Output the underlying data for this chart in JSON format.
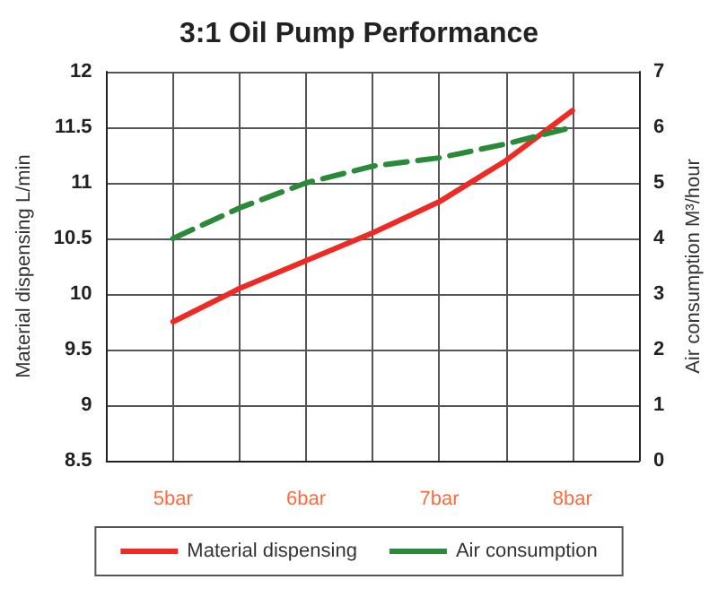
{
  "chart_data": {
    "type": "line",
    "title": "3:1 Oil Pump Performance",
    "ylabel": "Material dispensing L/min",
    "y2label": "Air consumption M³/hour",
    "x": [
      5,
      5.5,
      6,
      6.5,
      7,
      7.5,
      8
    ],
    "xlim": [
      4.5,
      8.5
    ],
    "xticks": [
      {
        "value": 4.5,
        "label": null
      },
      {
        "value": 5,
        "label": "5bar"
      },
      {
        "value": 5.5,
        "label": null
      },
      {
        "value": 6,
        "label": "6bar"
      },
      {
        "value": 6.5,
        "label": null
      },
      {
        "value": 7,
        "label": "7bar"
      },
      {
        "value": 7.5,
        "label": null
      },
      {
        "value": 8,
        "label": "8bar"
      },
      {
        "value": 8.5,
        "label": null
      }
    ],
    "ylim": [
      8.5,
      12
    ],
    "yticks": [
      8.5,
      9,
      9.5,
      10,
      10.5,
      11,
      11.5,
      12
    ],
    "y2lim": [
      0,
      7
    ],
    "y2ticks": [
      0,
      1,
      2,
      3,
      4,
      5,
      6,
      7
    ],
    "series": [
      {
        "name": "Material dispensing",
        "color": "#ee2a24",
        "line_style": "solid",
        "values": [
          9.75,
          10.05,
          10.3,
          10.55,
          10.83,
          11.2,
          11.65
        ]
      },
      {
        "name": "Air consumption",
        "color": "#2a8a3a",
        "line_style": "dashed",
        "axis": "y2",
        "values": [
          4.0,
          4.55,
          5.0,
          5.3,
          5.45,
          5.7,
          6.0
        ]
      }
    ],
    "grid": true,
    "legend": "bottom",
    "marker": "none"
  }
}
